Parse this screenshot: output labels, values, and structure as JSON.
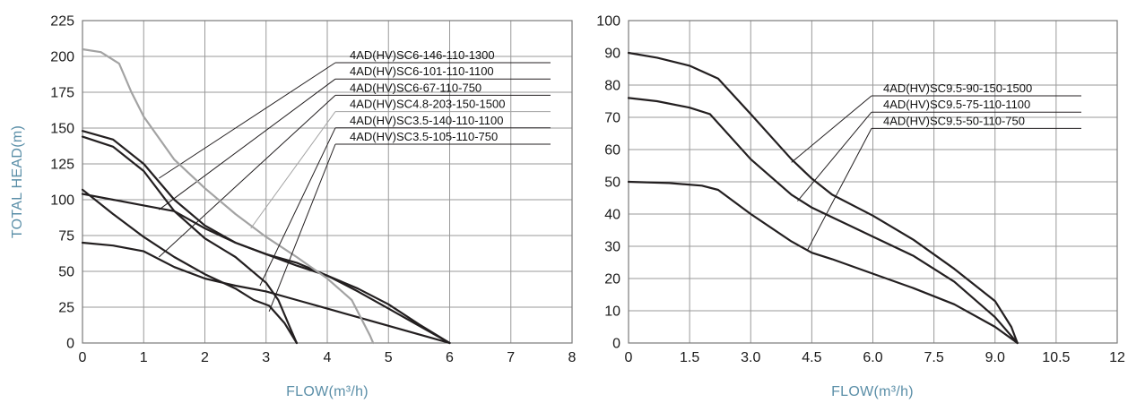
{
  "chart_data": [
    {
      "type": "line",
      "xlabel": "FLOW(m³/h)",
      "ylabel": "TOTAL HEAD(m)",
      "xlim": [
        0,
        8
      ],
      "ylim": [
        0,
        225
      ],
      "xticks": [
        "0",
        "1",
        "2",
        "3",
        "4",
        "5",
        "6",
        "7",
        "8"
      ],
      "yticks": [
        "0",
        "25",
        "50",
        "75",
        "100",
        "125",
        "150",
        "175",
        "200",
        "225"
      ],
      "grid": true,
      "series": [
        {
          "name": "4AD(HV)SC6-146-110-1300",
          "color": "#231f20",
          "anchor": [
            1.25,
            115
          ],
          "points": [
            [
              0,
              148
            ],
            [
              0.5,
              142
            ],
            [
              1,
              125
            ],
            [
              1.5,
              100
            ],
            [
              2,
              82
            ],
            [
              2.5,
              70
            ],
            [
              3,
              62
            ],
            [
              3.5,
              56
            ],
            [
              4,
              47
            ],
            [
              4.5,
              38
            ],
            [
              5,
              27
            ],
            [
              5.5,
              13
            ],
            [
              6,
              0
            ]
          ]
        },
        {
          "name": "4AD(HV)SC6-101-110-1100",
          "color": "#231f20",
          "anchor": [
            1.25,
            93
          ],
          "points": [
            [
              0,
              104
            ],
            [
              0.5,
              100
            ],
            [
              1,
              96
            ],
            [
              1.5,
              92
            ],
            [
              2,
              80
            ],
            [
              2.5,
              70
            ],
            [
              3,
              62
            ],
            [
              3.5,
              54
            ],
            [
              4,
              47
            ],
            [
              4.5,
              36
            ],
            [
              5,
              24
            ],
            [
              5.5,
              12
            ],
            [
              6,
              0
            ]
          ]
        },
        {
          "name": "4AD(HV)SC6-67-110-750",
          "color": "#231f20",
          "anchor": [
            1.25,
            60
          ],
          "points": [
            [
              0,
              70
            ],
            [
              0.5,
              68
            ],
            [
              1,
              64
            ],
            [
              1.5,
              53
            ],
            [
              2,
              45
            ],
            [
              2.5,
              40
            ],
            [
              3,
              36
            ],
            [
              3.5,
              30
            ],
            [
              4,
              24
            ],
            [
              4.5,
              18
            ],
            [
              5,
              12
            ],
            [
              5.5,
              6
            ],
            [
              6,
              0
            ]
          ]
        },
        {
          "name": "4AD(HV)SC4.8-203-150-1500",
          "color": "#a3a3a3",
          "anchor": [
            2.75,
            80
          ],
          "points": [
            [
              0,
              205
            ],
            [
              0.3,
              203
            ],
            [
              0.6,
              195
            ],
            [
              0.8,
              175
            ],
            [
              1,
              158
            ],
            [
              1.5,
              128
            ],
            [
              2,
              108
            ],
            [
              2.5,
              90
            ],
            [
              3,
              74
            ],
            [
              3.5,
              60
            ],
            [
              4,
              45
            ],
            [
              4.4,
              30
            ],
            [
              4.7,
              5
            ],
            [
              4.75,
              0
            ]
          ]
        },
        {
          "name": "4AD(HV)SC3.5-140-110-1100",
          "color": "#231f20",
          "anchor": [
            2.9,
            40
          ],
          "points": [
            [
              0,
              144
            ],
            [
              0.5,
              137
            ],
            [
              1,
              120
            ],
            [
              1.5,
              92
            ],
            [
              2,
              73
            ],
            [
              2.5,
              60
            ],
            [
              3,
              42
            ],
            [
              3.2,
              30
            ],
            [
              3.4,
              10
            ],
            [
              3.5,
              0
            ]
          ]
        },
        {
          "name": "4AD(HV)SC3.5-105-110-750",
          "color": "#231f20",
          "anchor": [
            3.05,
            22
          ],
          "points": [
            [
              0,
              107
            ],
            [
              0.5,
              90
            ],
            [
              1,
              74
            ],
            [
              1.5,
              60
            ],
            [
              2,
              48
            ],
            [
              2.5,
              38
            ],
            [
              2.8,
              30
            ],
            [
              3.05,
              26
            ],
            [
              3.3,
              14
            ],
            [
              3.5,
              0
            ]
          ]
        }
      ]
    },
    {
      "type": "line",
      "xlabel": "FLOW(m³/h)",
      "ylabel": "",
      "xlim": [
        0,
        12
      ],
      "ylim": [
        0,
        100
      ],
      "xticks": [
        "0",
        "1.5",
        "3.0",
        "4.5",
        "6.0",
        "7.5",
        "9.0",
        "10.5",
        "12"
      ],
      "yticks": [
        "0",
        "10",
        "20",
        "30",
        "40",
        "50",
        "60",
        "70",
        "80",
        "90",
        "100"
      ],
      "grid": true,
      "series": [
        {
          "name": "4AD(HV)SC9.5-90-150-1500",
          "color": "#231f20",
          "anchor": [
            4.0,
            56
          ],
          "points": [
            [
              0,
              90
            ],
            [
              0.7,
              88.5
            ],
            [
              1.5,
              86
            ],
            [
              2.2,
              82
            ],
            [
              3,
              71
            ],
            [
              4,
              57
            ],
            [
              4.5,
              51
            ],
            [
              5,
              46
            ],
            [
              6,
              39.5
            ],
            [
              7,
              32
            ],
            [
              8,
              23
            ],
            [
              9,
              13
            ],
            [
              9.4,
              5
            ],
            [
              9.55,
              0
            ]
          ]
        },
        {
          "name": "4AD(HV)SC9.5-75-110-1100",
          "color": "#231f20",
          "anchor": [
            4.15,
            44
          ],
          "points": [
            [
              0,
              76
            ],
            [
              0.7,
              75
            ],
            [
              1.5,
              73
            ],
            [
              2,
              71
            ],
            [
              3,
              57
            ],
            [
              4,
              46
            ],
            [
              4.5,
              42
            ],
            [
              5,
              39
            ],
            [
              6,
              33
            ],
            [
              7,
              27
            ],
            [
              8,
              19
            ],
            [
              9,
              8
            ],
            [
              9.55,
              0
            ]
          ]
        },
        {
          "name": "4AD(HV)SC9.5-50-110-750",
          "color": "#231f20",
          "anchor": [
            4.4,
            29
          ],
          "points": [
            [
              0,
              50
            ],
            [
              1,
              49.6
            ],
            [
              1.8,
              48.8
            ],
            [
              2.2,
              47.5
            ],
            [
              3,
              40
            ],
            [
              4,
              31.5
            ],
            [
              4.5,
              28
            ],
            [
              5,
              26
            ],
            [
              6,
              21.5
            ],
            [
              7,
              17
            ],
            [
              8,
              12
            ],
            [
              9,
              5
            ],
            [
              9.55,
              0
            ]
          ]
        }
      ]
    }
  ]
}
